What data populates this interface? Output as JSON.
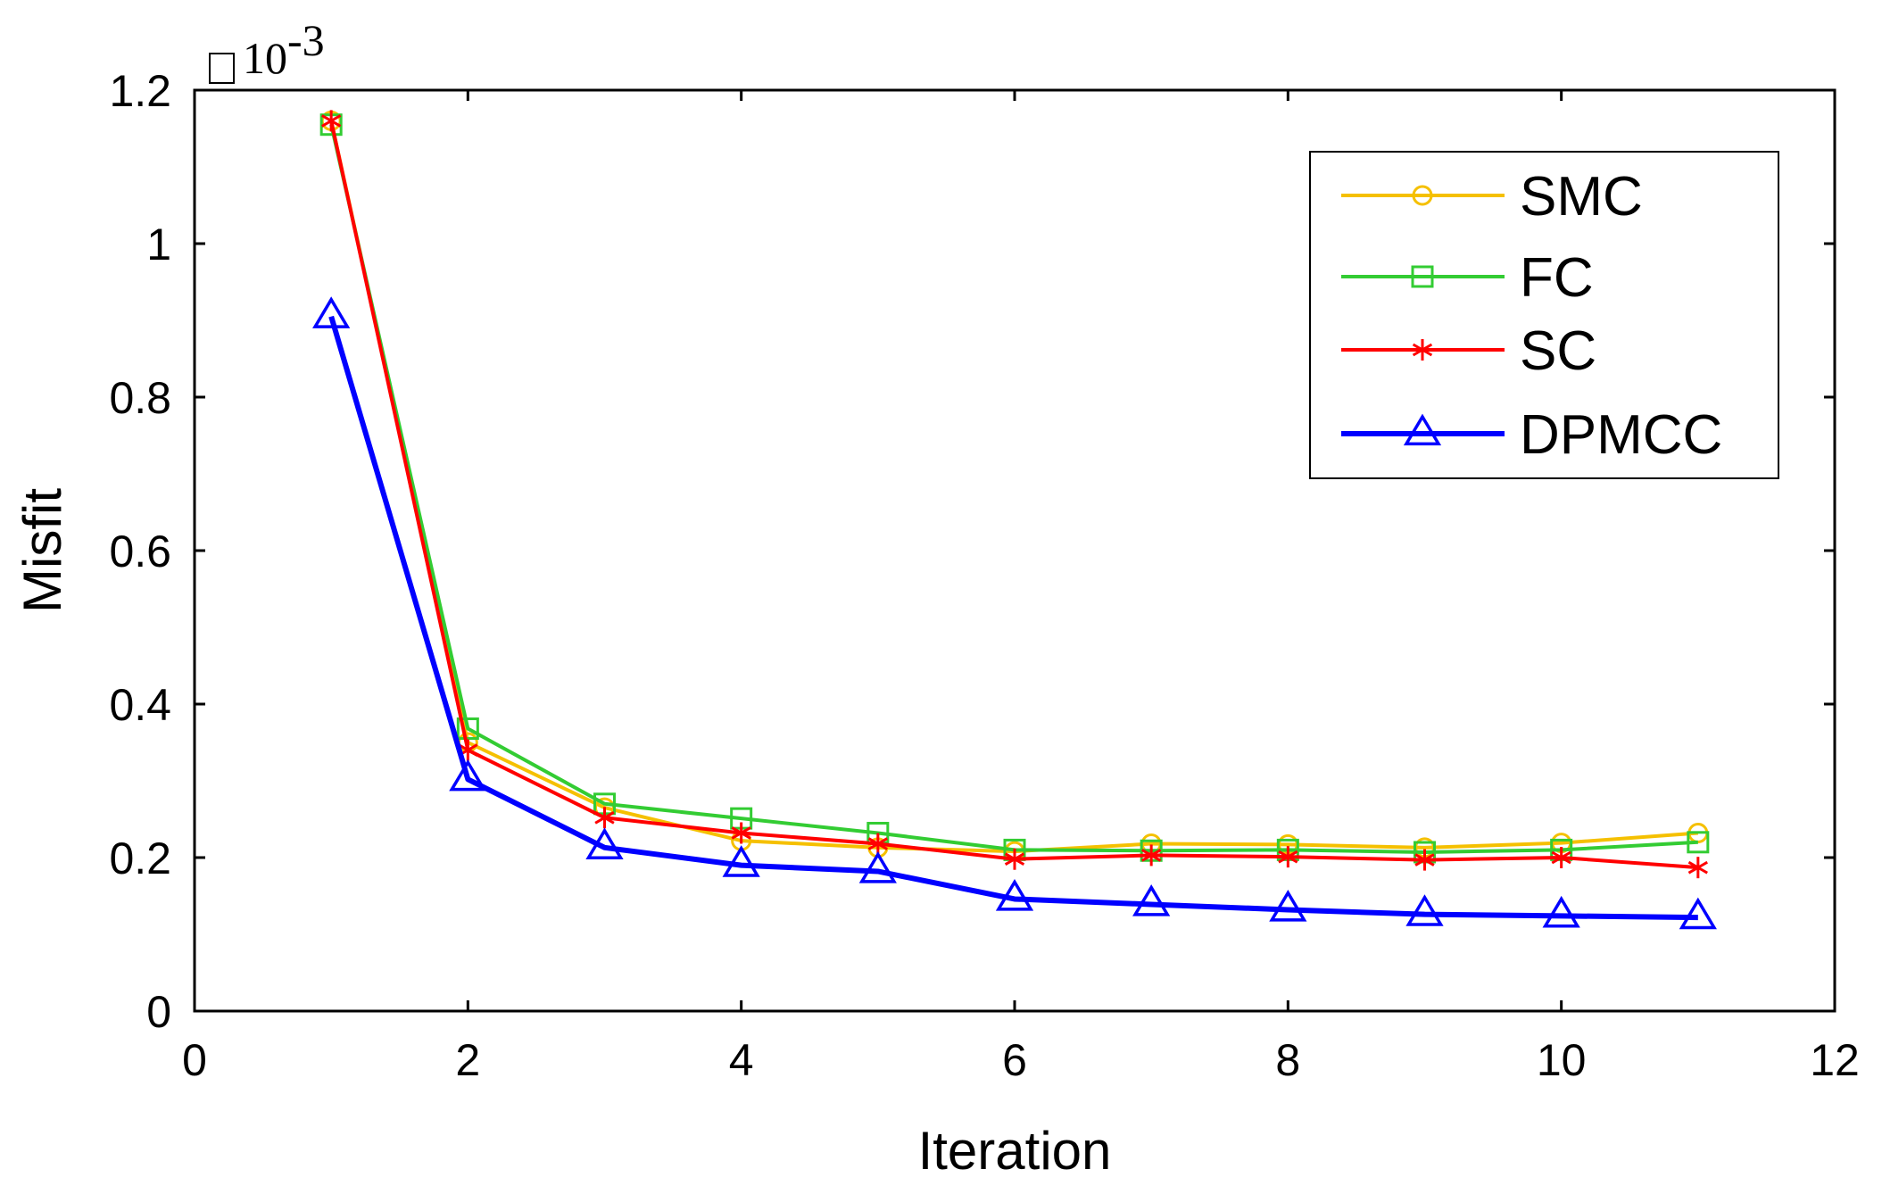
{
  "chart_data": {
    "type": "line",
    "title": "",
    "xlabel": "Iteration",
    "ylabel": "Misfit",
    "y_multiplier": "10",
    "y_multiplier_exp": "-3",
    "xlim": [
      0,
      12
    ],
    "ylim": [
      0,
      1.2
    ],
    "xticks": [
      0,
      2,
      4,
      6,
      8,
      10,
      12
    ],
    "xtick_labels": [
      "0",
      "2",
      "4",
      "6",
      "8",
      "10",
      "12"
    ],
    "yticks": [
      0,
      0.2,
      0.4,
      0.6,
      0.8,
      1.0,
      1.2
    ],
    "ytick_labels": [
      "0",
      "0.2",
      "0.4",
      "0.6",
      "0.8",
      "1",
      "1.2"
    ],
    "grid": false,
    "legend_position": "top-right",
    "x": [
      1,
      2,
      3,
      4,
      5,
      6,
      7,
      8,
      9,
      10,
      11
    ],
    "series": [
      {
        "name": "SMC",
        "color": "#f5c000",
        "marker": "circle",
        "values": [
          1.16,
          0.35,
          0.265,
          0.222,
          0.213,
          0.208,
          0.218,
          0.217,
          0.213,
          0.219,
          0.232
        ]
      },
      {
        "name": "FC",
        "color": "#33cc33",
        "marker": "square",
        "values": [
          1.155,
          0.368,
          0.27,
          0.251,
          0.232,
          0.21,
          0.209,
          0.21,
          0.207,
          0.21,
          0.22
        ]
      },
      {
        "name": "SC",
        "color": "#ff0000",
        "marker": "asterisk",
        "values": [
          1.16,
          0.34,
          0.252,
          0.232,
          0.218,
          0.198,
          0.203,
          0.201,
          0.197,
          0.2,
          0.187
        ]
      },
      {
        "name": "DPMCC",
        "color": "#0000ff",
        "marker": "triangle",
        "values": [
          0.905,
          0.302,
          0.213,
          0.19,
          0.182,
          0.146,
          0.139,
          0.132,
          0.126,
          0.124,
          0.122
        ]
      }
    ]
  }
}
